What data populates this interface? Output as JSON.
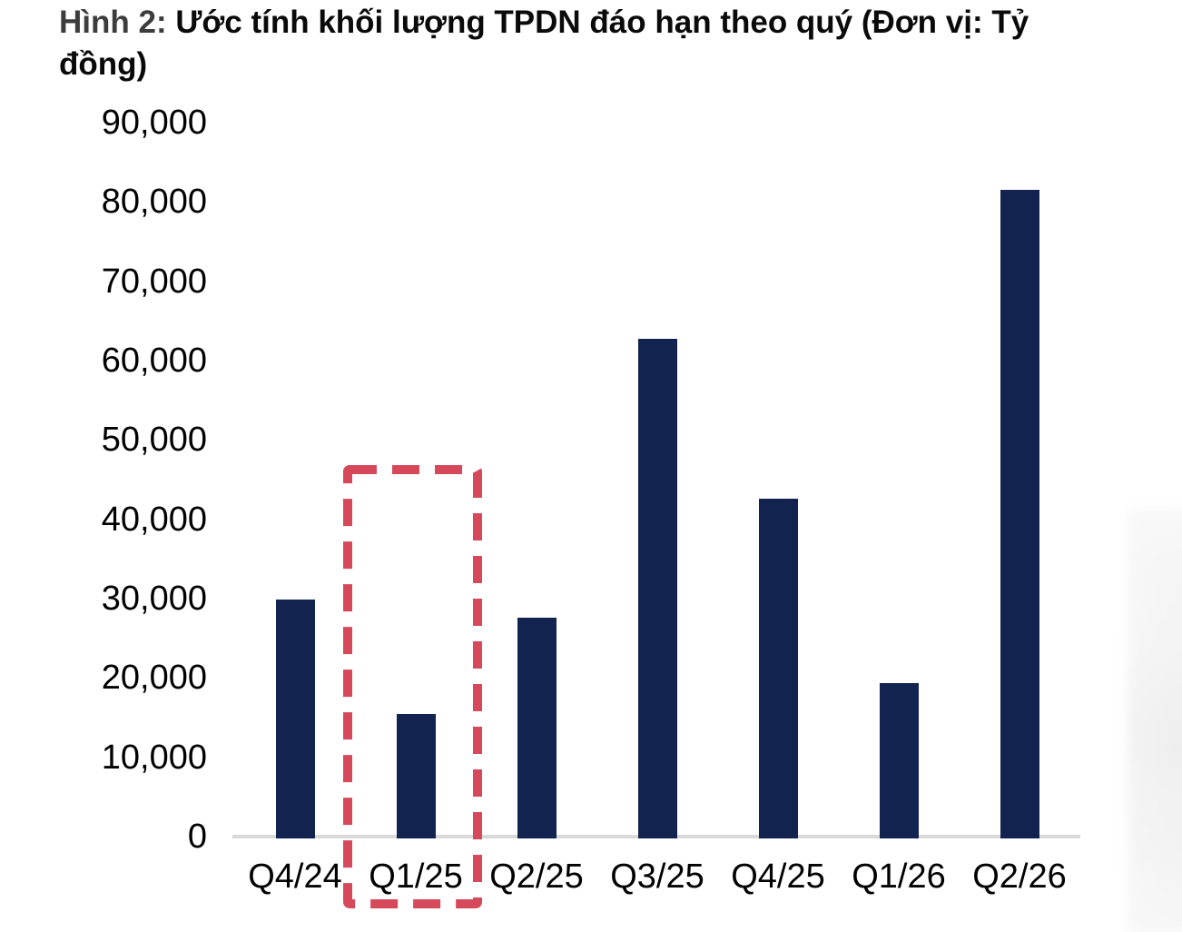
{
  "title": {
    "prefix": "Hình 2:",
    "line1_rest": "Ước tính khối lượng TPDN đáo hạn theo quý (Đơn vị: Tỷ",
    "line2": "đồng)",
    "full": "Hình 2: Ước tính khối lượng TPDN đáo hạn theo quý (Đơn vị: Tỷ đồng)"
  },
  "chart_data": {
    "type": "bar",
    "title": "Ước tính khối lượng TPDN đáo hạn theo quý",
    "unit_label": "Tỷ đồng",
    "categories": [
      "Q4/24",
      "Q1/25",
      "Q2/25",
      "Q3/25",
      "Q4/25",
      "Q1/26",
      "Q2/26"
    ],
    "values": [
      30100,
      15700,
      27800,
      63000,
      42800,
      19600,
      81800
    ],
    "xlabel": "",
    "ylabel": "",
    "ylim": [
      0,
      90000
    ],
    "ytick_step": 10000,
    "ytick_labels": [
      "0",
      "10,000",
      "20,000",
      "30,000",
      "40,000",
      "50,000",
      "60,000",
      "70,000",
      "80,000",
      "90,000"
    ],
    "grid": false,
    "legend": false,
    "bar_color": "#12234F",
    "axis_line_color": "#D9D9D9",
    "highlight": {
      "category": "Q1/25",
      "shape": "dashed-rectangle",
      "color": "#D6495B",
      "note": "red dashed box around Q1/25 bar and its axis label"
    }
  }
}
